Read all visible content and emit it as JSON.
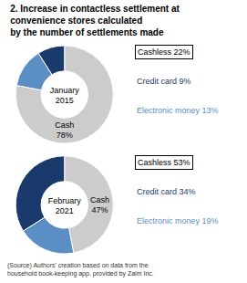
{
  "chart_data": [
    {
      "type": "pie",
      "title": "2. Increase in contactless settlement at\nconvenience stores calculated\nby the number of settlements made",
      "subtitle": "January\n2015",
      "values": [
        78,
        9,
        13
      ],
      "value_labels": [
        "Cash\n78%",
        "Credit card 9%",
        "Electronic money 13%"
      ],
      "data_labels": true,
      "colors": [
        "#cccccc",
        "#1a3a6b",
        "#5b8ec4"
      ],
      "annotations": [
        "Cashless 22%"
      ]
    },
    {
      "type": "pie",
      "subtitle": "February\n2021",
      "values": [
        47,
        34,
        19
      ],
      "value_labels": [
        "Cash\n47%",
        "Credit card 34%",
        "Electronic money 19%"
      ],
      "data_labels": true,
      "colors": [
        "#cccccc",
        "#1a3a6b",
        "#5b8ec4"
      ],
      "annotations": [
        "Cashless 53%",
        "(Source) Authors’ creation based on data from the\nhousehold book-keeping app. provided by Zaim Inc."
      ]
    }
  ]
}
